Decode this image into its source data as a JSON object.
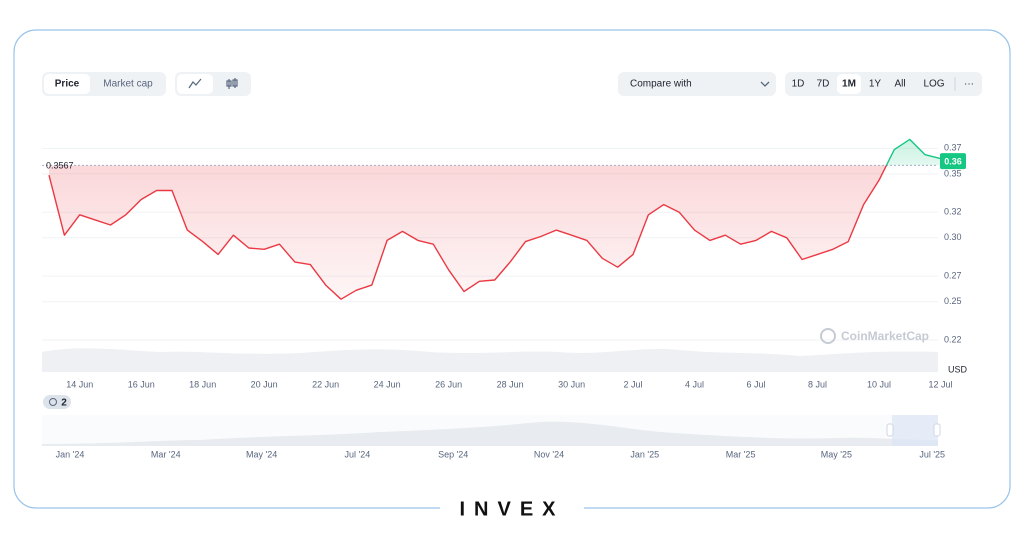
{
  "toolbar": {
    "tabs": [
      "Price",
      "Market cap"
    ],
    "compare": "Compare with",
    "ranges": [
      "1D",
      "7D",
      "1M",
      "1Y",
      "All",
      "LOG"
    ],
    "more": "···"
  },
  "chart_data": {
    "type": "line",
    "categories": [
      null,
      null,
      "14 Jun",
      null,
      null,
      null,
      "16 Jun",
      null,
      null,
      null,
      "18 Jun",
      null,
      null,
      null,
      "20 Jun",
      null,
      null,
      null,
      "22 Jun",
      null,
      null,
      null,
      "24 Jun",
      null,
      null,
      null,
      "26 Jun",
      null,
      null,
      null,
      "28 Jun",
      null,
      null,
      null,
      "30 Jun",
      null,
      null,
      null,
      "2 Jul",
      null,
      null,
      null,
      "4 Jul",
      null,
      null,
      null,
      "6 Jul",
      null,
      null,
      null,
      "8 Jul",
      null,
      null,
      null,
      "10 Jul",
      null,
      null,
      null,
      "12 Jul"
    ],
    "values": [
      0.349,
      0.302,
      0.318,
      0.314,
      0.31,
      0.318,
      0.33,
      0.337,
      0.337,
      0.306,
      0.297,
      0.287,
      0.302,
      0.292,
      0.291,
      0.295,
      0.281,
      0.279,
      0.263,
      0.252,
      0.259,
      0.263,
      0.298,
      0.305,
      0.298,
      0.295,
      0.275,
      0.258,
      0.266,
      0.267,
      0.281,
      0.297,
      0.301,
      0.306,
      0.302,
      0.298,
      0.284,
      0.277,
      0.287,
      0.318,
      0.326,
      0.32,
      0.306,
      0.298,
      0.302,
      0.295,
      0.298,
      0.305,
      0.3,
      0.283,
      0.287,
      0.291,
      0.297,
      0.326,
      0.345,
      0.369,
      0.377,
      0.365,
      0.362
    ],
    "colors": {
      "above": "#16c784",
      "below": "#ea3943"
    },
    "reference": 0.3567,
    "current_price": 0.36,
    "ylim": [
      0.195,
      0.4
    ],
    "yticks": [
      0.22,
      0.25,
      0.27,
      {
        "value": 0.3,
        "label": "0.30"
      },
      0.32,
      0.35,
      0.37
    ],
    "grid": true,
    "currency": "USD",
    "watermark": "CoinMarketCap"
  },
  "navigator": {
    "badge": "2",
    "labels": [
      "Jan '24",
      "Mar '24",
      "May '24",
      "Jul '24",
      "Sep '24",
      "Nov '24",
      "Jan '25",
      "Mar '25",
      "May '25",
      "Jul '25"
    ]
  },
  "brand": "INVEX"
}
